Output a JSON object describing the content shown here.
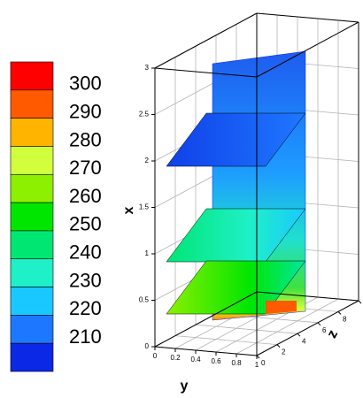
{
  "chart_data": {
    "type": "contour3d",
    "legend": {
      "levels": [
        300,
        290,
        280,
        270,
        260,
        250,
        240,
        230,
        220,
        210
      ],
      "colors": [
        "#ff0000",
        "#ff5a00",
        "#ffb400",
        "#d2ff3c",
        "#8cf000",
        "#00e600",
        "#00e673",
        "#1ff0c8",
        "#19c8ff",
        "#1e78ff",
        "#0a28e6"
      ]
    },
    "xlabel": "x",
    "ylabel": "y",
    "zlabel": "z",
    "xlim": [
      0,
      3
    ],
    "xticks": [
      0,
      0.5,
      1,
      1.5,
      2,
      2.5,
      3
    ],
    "ylim": [
      0,
      1
    ],
    "yticks": [
      0,
      0.2,
      0.4,
      0.6,
      0.8,
      1
    ],
    "zlim": [
      0,
      10
    ],
    "zticks": [
      0,
      2,
      4,
      6,
      8,
      10
    ],
    "grid": true
  }
}
